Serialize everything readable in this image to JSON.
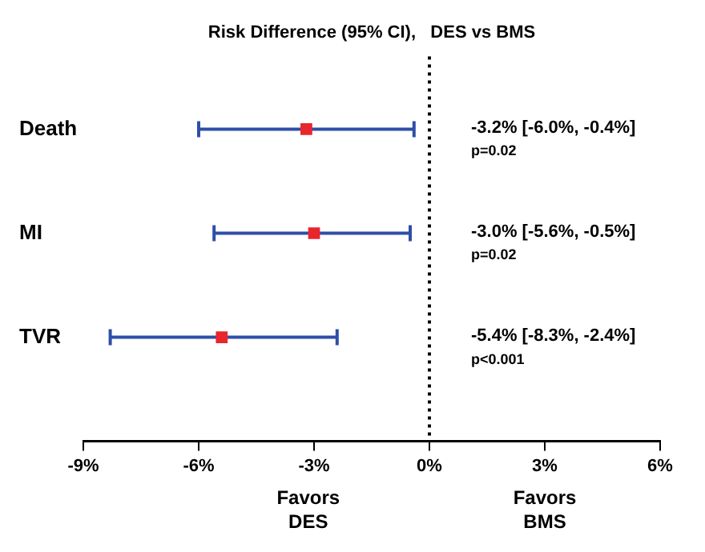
{
  "chart_data": {
    "type": "scatter",
    "orientation": "horizontal",
    "title": "Risk Difference (95% CI),   DES vs BMS",
    "categories": [
      "Death",
      "MI",
      "TVR"
    ],
    "series": [
      {
        "color": "#e8262b",
        "values": [
          -3.2,
          -3.0,
          -5.4
        ],
        "errors": [
          [
            -6.0,
            -0.4
          ],
          [
            -5.6,
            -0.5
          ],
          [
            -8.3,
            -2.4
          ]
        ]
      }
    ],
    "marker": "square",
    "xlim": [
      -9,
      6
    ],
    "xticks": [
      {
        "value": -9,
        "label": "-9%"
      },
      {
        "value": -6,
        "label": "-6%"
      },
      {
        "value": -3,
        "label": "-3%"
      },
      {
        "value": 0,
        "label": "0%"
      },
      {
        "value": 3,
        "label": "3%"
      },
      {
        "value": 6,
        "label": "6%"
      }
    ],
    "ref_lines": [
      {
        "axis": "x",
        "value": 0,
        "color": "#000000",
        "line_style": "dotted"
      }
    ],
    "annotations": [
      "-3.2% [-6.0%, -0.4%]",
      "p=0.02",
      "-3.0% [-5.6%, -0.5%]",
      "p=0.02",
      "-5.4% [-8.3%, -2.4%]",
      "p<0.001",
      "Favors DES",
      "Favors BMS"
    ],
    "grid": false,
    "legend": false
  }
}
